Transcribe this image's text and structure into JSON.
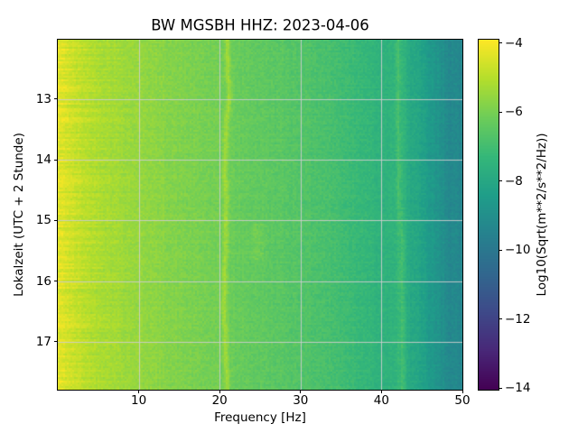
{
  "chart_data": {
    "type": "heatmap",
    "subtype": "spectrogram",
    "title": "BW MGSBH  HHZ: 2023-04-06",
    "xlabel": "Frequency [Hz]",
    "ylabel": "Lokalzeit (UTC + 2 Stunde)",
    "x_axis": {
      "min": 0,
      "max": 50,
      "ticks": [
        10,
        20,
        30,
        40,
        50
      ]
    },
    "y_axis": {
      "start_hour": 12.02,
      "end_hour": 17.79,
      "ticks": [
        13,
        14,
        15,
        16,
        17
      ],
      "tick_labels": [
        "13",
        "14",
        "15",
        "16",
        "17"
      ]
    },
    "colorbar": {
      "label": "Log10(Sqrt(m**2/s**2/Hz))",
      "ticks": [
        -4,
        -6,
        -8,
        -10,
        -12,
        -14
      ],
      "clim": [
        -14.05,
        -3.9
      ],
      "colormap": "viridis"
    },
    "grid": {
      "on": true,
      "color": "#cdcdcd"
    },
    "frequency_profile": {
      "comment": "mean Log10(Sqrt(m**2/s**2/Hz)) vs frequency, read from colors vs colorbar",
      "frequencies_hz": [
        0,
        1,
        2,
        4,
        6,
        8,
        10,
        12,
        15,
        18,
        20,
        22,
        25,
        28,
        30,
        33,
        36,
        38,
        40,
        41,
        42,
        43,
        44,
        45,
        46,
        47,
        48,
        49,
        50
      ],
      "log10_amplitude": [
        -4.3,
        -4.45,
        -4.7,
        -5.0,
        -5.2,
        -5.35,
        -5.5,
        -5.65,
        -5.85,
        -6.0,
        -6.1,
        -6.25,
        -6.4,
        -6.55,
        -6.65,
        -6.85,
        -7.1,
        -7.3,
        -7.55,
        -7.6,
        -7.5,
        -7.7,
        -8.0,
        -8.3,
        -8.6,
        -8.85,
        -9.1,
        -9.3,
        -9.45
      ]
    },
    "features": [
      {
        "type": "tonal_line",
        "frequency_hz": 21.0,
        "boost_log10": 0.85,
        "wander_hz": 0.45
      },
      {
        "type": "tonal_line",
        "frequency_hz": 42.2,
        "boost_log10": 0.45,
        "wander_hz": 0.4
      },
      {
        "type": "band",
        "frequency_hz_range": [
          40.5,
          43.5
        ],
        "boost_log10": 0.1
      },
      {
        "type": "bright_patch",
        "frequency_hz": 24.7,
        "time_hours_range": [
          15.05,
          15.65
        ],
        "boost_log10": 0.32
      }
    ]
  }
}
